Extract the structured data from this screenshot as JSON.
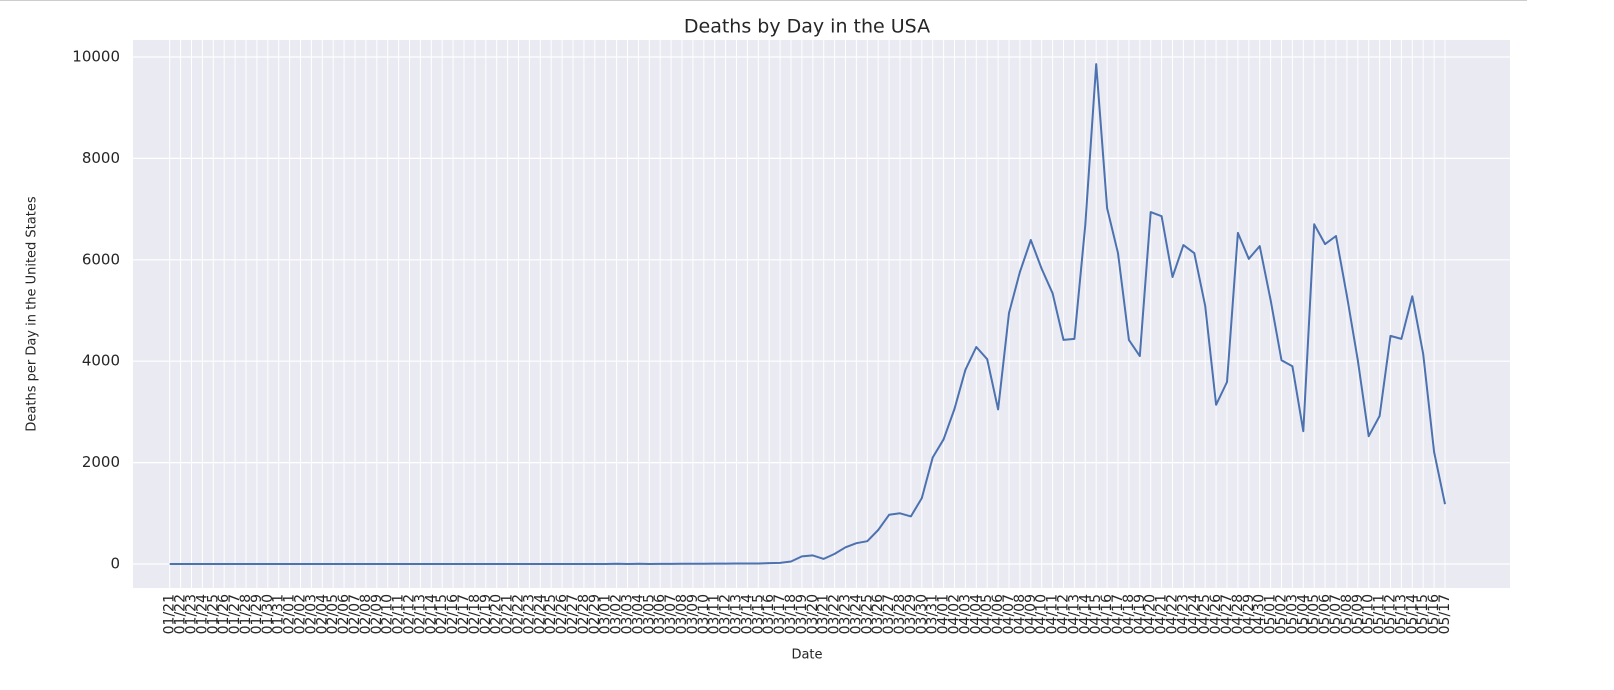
{
  "chart_data": {
    "type": "line",
    "title": "Deaths by Day in the USA",
    "x_label": "Date",
    "y_label": "Deaths per Day in the United States",
    "categories": [
      "01/21",
      "01/22",
      "01/23",
      "01/24",
      "01/25",
      "01/26",
      "01/27",
      "01/28",
      "01/29",
      "01/30",
      "01/31",
      "02/01",
      "02/02",
      "02/03",
      "02/04",
      "02/05",
      "02/06",
      "02/07",
      "02/08",
      "02/09",
      "02/10",
      "02/11",
      "02/12",
      "02/13",
      "02/14",
      "02/15",
      "02/16",
      "02/17",
      "02/18",
      "02/19",
      "02/20",
      "02/21",
      "02/22",
      "02/23",
      "02/24",
      "02/25",
      "02/26",
      "02/27",
      "02/28",
      "02/29",
      "03/01",
      "03/02",
      "03/03",
      "03/04",
      "03/05",
      "03/06",
      "03/07",
      "03/08",
      "03/09",
      "03/10",
      "03/11",
      "03/12",
      "03/13",
      "03/14",
      "03/15",
      "03/16",
      "03/17",
      "03/18",
      "03/19",
      "03/20",
      "03/21",
      "03/22",
      "03/23",
      "03/24",
      "03/25",
      "03/26",
      "03/27",
      "03/28",
      "03/29",
      "03/30",
      "03/31",
      "04/01",
      "04/02",
      "04/03",
      "04/04",
      "04/05",
      "04/06",
      "04/07",
      "04/08",
      "04/09",
      "04/10",
      "04/11",
      "04/12",
      "04/13",
      "04/14",
      "04/15",
      "04/16",
      "04/17",
      "04/18",
      "04/19",
      "04/20",
      "04/21",
      "04/22",
      "04/23",
      "04/24",
      "04/25",
      "04/26",
      "04/27",
      "04/28",
      "04/29",
      "04/30",
      "05/01",
      "05/02",
      "05/03",
      "05/04",
      "05/05",
      "05/06",
      "05/07",
      "05/08",
      "05/09",
      "05/10",
      "05/11",
      "05/12",
      "05/13",
      "05/14",
      "05/15",
      "05/16",
      "05/17"
    ],
    "series": [
      {
        "name": "Deaths",
        "color": "#4c72b0",
        "values": [
          0,
          0,
          0,
          0,
          0,
          0,
          0,
          0,
          0,
          0,
          0,
          0,
          0,
          0,
          0,
          0,
          0,
          0,
          0,
          0,
          0,
          0,
          0,
          0,
          0,
          0,
          0,
          0,
          0,
          0,
          0,
          0,
          0,
          0,
          0,
          0,
          0,
          0,
          0,
          1,
          1,
          5,
          1,
          4,
          1,
          2,
          3,
          4,
          4,
          4,
          8,
          8,
          10,
          10,
          11,
          18,
          22,
          50,
          150,
          170,
          100,
          200,
          330,
          410,
          450,
          670,
          970,
          1000,
          940,
          1300,
          2100,
          2460,
          3060,
          3830,
          4280,
          4040,
          3050,
          4950,
          5760,
          6390,
          5820,
          5340,
          4420,
          4440,
          6690,
          9860,
          7020,
          6130,
          4420,
          4100,
          6940,
          6860,
          5660,
          6290,
          6130,
          5090,
          3140,
          3590,
          6530,
          6020,
          6270,
          5210,
          4020,
          3900,
          2620,
          6700,
          6310,
          6470,
          5290,
          4020,
          2520,
          2920,
          4500,
          4440,
          5280,
          4140,
          2210,
          1180
        ]
      }
    ],
    "ylim": [
      -473,
      10335
    ],
    "yticks": [
      0,
      2000,
      4000,
      6000,
      8000,
      10000
    ],
    "grid": true
  }
}
